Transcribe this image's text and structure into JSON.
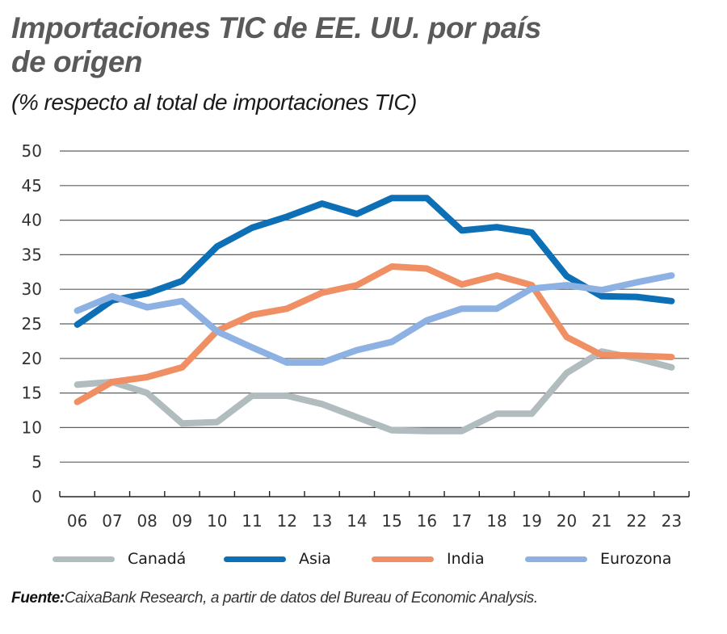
{
  "chart_data": {
    "type": "line",
    "title": "Importaciones TIC de EE. UU. por país de origen",
    "subtitle": "(% respecto al total de importaciones TIC)",
    "xlabel": "",
    "ylabel": "",
    "categories": [
      "06",
      "07",
      "08",
      "09",
      "10",
      "11",
      "12",
      "13",
      "14",
      "15",
      "16",
      "17",
      "18",
      "19",
      "20",
      "21",
      "22",
      "23"
    ],
    "y_ticks": [
      "0",
      "5",
      "10",
      "15",
      "20",
      "25",
      "30",
      "35",
      "40",
      "45",
      "50"
    ],
    "ylim": [
      0,
      50
    ],
    "y_step": 5,
    "grid": "horizontal",
    "legend_position": "bottom",
    "series": [
      {
        "name": "Canadá",
        "color": "#b1bcbe",
        "values": [
          16.2,
          16.6,
          15.0,
          10.6,
          10.8,
          14.6,
          14.6,
          13.4,
          11.5,
          9.6,
          9.5,
          9.5,
          12.0,
          12.0,
          17.9,
          21.0,
          20.0,
          18.7
        ]
      },
      {
        "name": "Asia",
        "color": "#0d6fb5",
        "values": [
          24.9,
          28.4,
          29.4,
          31.2,
          36.2,
          38.9,
          40.5,
          42.4,
          40.9,
          43.2,
          43.2,
          38.5,
          39.0,
          38.2,
          31.9,
          29.0,
          28.9,
          28.3
        ]
      },
      {
        "name": "India",
        "color": "#f08f63",
        "values": [
          13.7,
          16.6,
          17.3,
          18.7,
          24.0,
          26.3,
          27.2,
          29.5,
          30.6,
          33.3,
          33.0,
          30.7,
          32.0,
          30.6,
          23.1,
          20.5,
          20.4,
          20.2
        ]
      },
      {
        "name": "Eurozona",
        "color": "#8cb1e2",
        "values": [
          26.9,
          29.0,
          27.4,
          28.3,
          23.9,
          21.6,
          19.4,
          19.4,
          21.2,
          22.4,
          25.5,
          27.2,
          27.2,
          30.1,
          30.6,
          29.9,
          31.0,
          32.0
        ]
      }
    ]
  },
  "header": {
    "title": "Importaciones TIC de EE. UU. por país de origen",
    "subtitle": "(% respecto al total de importaciones TIC)"
  },
  "legend": {
    "items": [
      {
        "label": "Canadá",
        "color": "#b1bcbe"
      },
      {
        "label": "Asia",
        "color": "#0d6fb5"
      },
      {
        "label": "India",
        "color": "#f08f63"
      },
      {
        "label": "Eurozona",
        "color": "#8cb1e2"
      }
    ]
  },
  "footer": {
    "source_label": "Fuente:",
    "source_text": "CaixaBank Research, a partir de datos del Bureau of Economic Analysis."
  }
}
